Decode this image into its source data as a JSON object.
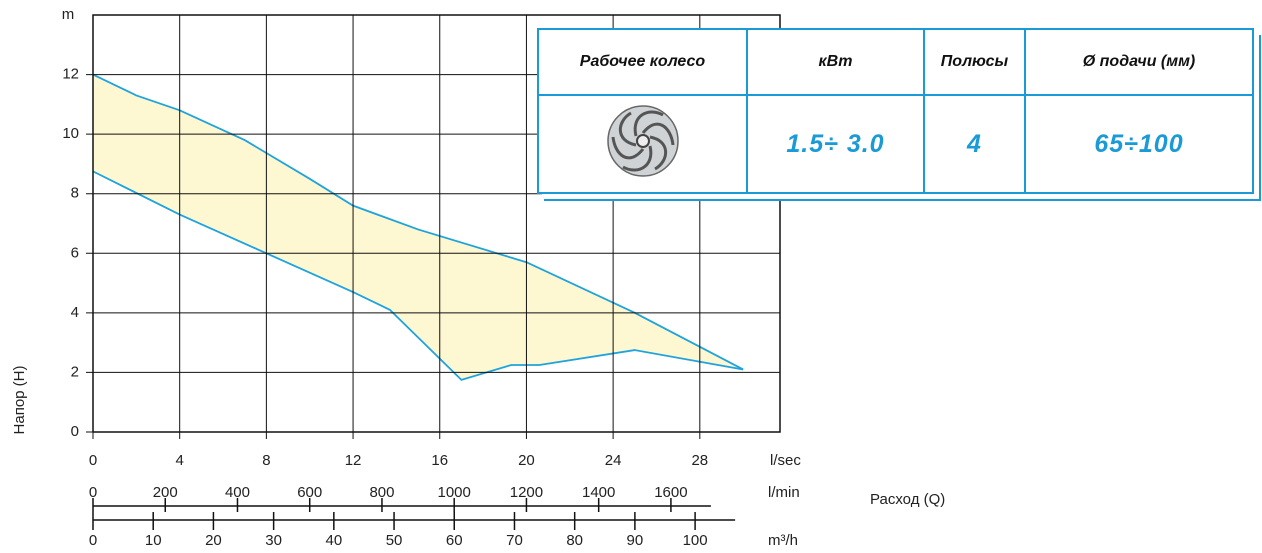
{
  "chart_data": {
    "type": "range",
    "y_label": "Напор (H)",
    "y_unit": "m",
    "x_label": "Расход (Q)",
    "x_unit": "l/sec",
    "xlim": [
      0,
      31.7
    ],
    "xticks": [
      0,
      4,
      8,
      12,
      16,
      20,
      24,
      28
    ],
    "ylim": [
      0,
      14
    ],
    "yticks": [
      0,
      2,
      4,
      6,
      8,
      10,
      12
    ],
    "grid": true,
    "line_color": "#1fa3dd",
    "fill_color": "#fdf7d2",
    "upper": {
      "x": [
        0,
        2,
        4,
        7,
        10,
        12,
        15,
        20,
        25,
        30
      ],
      "values": [
        12,
        11.3,
        10.8,
        9.8,
        8.5,
        7.6,
        6.8,
        5.7,
        4.0,
        2.1
      ]
    },
    "lower": {
      "x": [
        0,
        4,
        8,
        12,
        13.7,
        17,
        19.3,
        20.6,
        25,
        30
      ],
      "values": [
        8.75,
        7.3,
        6.0,
        4.7,
        4.1,
        1.75,
        2.25,
        2.25,
        2.75,
        2.1
      ]
    },
    "secondary_x_axes": [
      {
        "unit": "l/min",
        "xlim": [
          0,
          1902
        ],
        "xticks": [
          0,
          200,
          400,
          600,
          800,
          1000,
          1200,
          1400,
          1600
        ]
      },
      {
        "unit": "m³/h",
        "xlim": [
          0,
          114.1
        ],
        "xticks": [
          0,
          10,
          20,
          30,
          40,
          50,
          60,
          70,
          80,
          90,
          100
        ]
      }
    ]
  },
  "table": {
    "header": [
      "Рабочее колесо",
      "кВт",
      "Полюсы",
      "Ø подачи (мм)"
    ],
    "row": [
      "1.5÷ 3.0",
      "4",
      "65÷100"
    ]
  }
}
